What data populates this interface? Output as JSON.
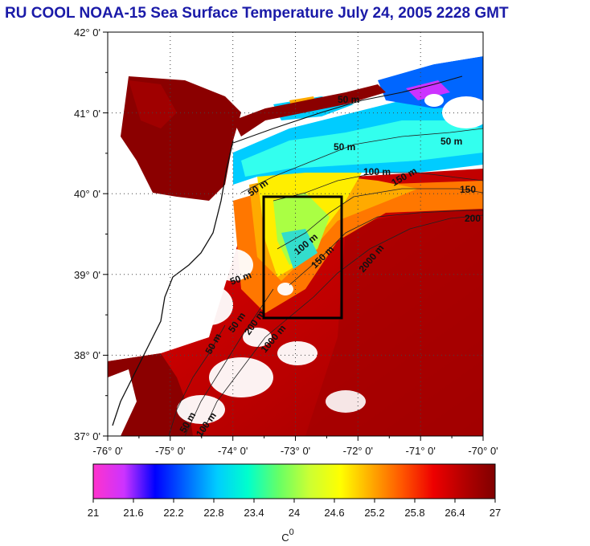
{
  "title": "RU COOL  NOAA-15 Sea Surface Temperature July 24, 2005 2228 GMT",
  "map": {
    "lat_range": [
      37,
      42
    ],
    "lon_range": [
      -76,
      -70
    ],
    "lat_ticks": [
      "42° 0'",
      "41° 0'",
      "40° 0'",
      "39° 0'",
      "38° 0'",
      "37° 0'"
    ],
    "lon_ticks": [
      "-76° 0'",
      "-75° 0'",
      "-74° 0'",
      "-73° 0'",
      "-72° 0'",
      "-71° 0'",
      "-70° 0'"
    ],
    "study_box": {
      "lon": [
        -73.5,
        -72.2
      ],
      "lat": [
        38.5,
        40.0
      ]
    },
    "contour_labels": [
      "50 m",
      "50 m",
      "50 m",
      "50 m",
      "100 m",
      "150 m",
      "150",
      "200",
      "50 m",
      "100 m",
      "150 m",
      "2000 m",
      "50 m",
      "1000 m",
      "50 m",
      "200 m",
      "50 m",
      "100 m"
    ]
  },
  "colorbar": {
    "range": [
      21,
      27
    ],
    "ticks": [
      "21",
      "21.6",
      "22.2",
      "22.8",
      "23.4",
      "24",
      "24.6",
      "25.2",
      "25.8",
      "26.4",
      "27"
    ],
    "unit_label": "C",
    "unit_superscript": "0",
    "stops": [
      "#ff33cc",
      "#cc33ff",
      "#0000ff",
      "#0066ff",
      "#00ccff",
      "#00ffcc",
      "#66ff66",
      "#ccff33",
      "#ffff00",
      "#ffaa00",
      "#ff5500",
      "#ee0000",
      "#b30000",
      "#800000"
    ]
  }
}
